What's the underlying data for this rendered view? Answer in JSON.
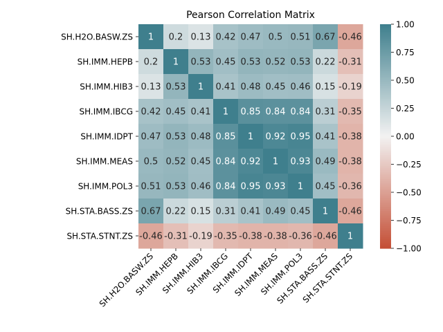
{
  "chart_data": {
    "type": "heatmap",
    "title": "Pearson Correlation Matrix",
    "row_labels": [
      "SH.H2O.BASW.ZS",
      "SH.IMM.HEPB",
      "SH.IMM.HIB3",
      "SH.IMM.IBCG",
      "SH.IMM.IDPT",
      "SH.IMM.MEAS",
      "SH.IMM.POL3",
      "SH.STA.BASS.ZS",
      "SH.STA.STNT.ZS"
    ],
    "col_labels": [
      "SH.H2O.BASW.ZS",
      "SH.IMM.HEPB",
      "SH.IMM.HIB3",
      "SH.IMM.IBCG",
      "SH.IMM.IDPT",
      "SH.IMM.MEAS",
      "SH.IMM.POL3",
      "SH.STA.BASS.ZS",
      "SH.STA.STNT.ZS"
    ],
    "values": [
      [
        1,
        0.2,
        0.13,
        0.42,
        0.47,
        0.5,
        0.51,
        0.67,
        -0.46
      ],
      [
        0.2,
        1,
        0.53,
        0.45,
        0.53,
        0.52,
        0.53,
        0.22,
        -0.31
      ],
      [
        0.13,
        0.53,
        1,
        0.41,
        0.48,
        0.45,
        0.46,
        0.15,
        -0.19
      ],
      [
        0.42,
        0.45,
        0.41,
        1,
        0.85,
        0.84,
        0.84,
        0.31,
        -0.35
      ],
      [
        0.47,
        0.53,
        0.48,
        0.85,
        1,
        0.92,
        0.95,
        0.41,
        -0.38
      ],
      [
        0.5,
        0.52,
        0.45,
        0.84,
        0.92,
        1,
        0.93,
        0.49,
        -0.38
      ],
      [
        0.51,
        0.53,
        0.46,
        0.84,
        0.95,
        0.93,
        1,
        0.45,
        -0.36
      ],
      [
        0.67,
        0.22,
        0.15,
        0.31,
        0.41,
        0.49,
        0.45,
        1,
        -0.46
      ],
      [
        -0.46,
        -0.31,
        -0.19,
        -0.35,
        -0.38,
        -0.38,
        -0.36,
        -0.46,
        1
      ]
    ],
    "colorbar": {
      "range": [
        -1.0,
        1.0
      ],
      "ticks": [
        "1.00",
        "0.75",
        "0.50",
        "0.25",
        "0.00",
        "−0.25",
        "−0.50",
        "−0.75",
        "−1.00"
      ],
      "negative_color": "#c44e35",
      "center_color": "#f2f2f2",
      "positive_color": "#3f7f8d"
    }
  }
}
